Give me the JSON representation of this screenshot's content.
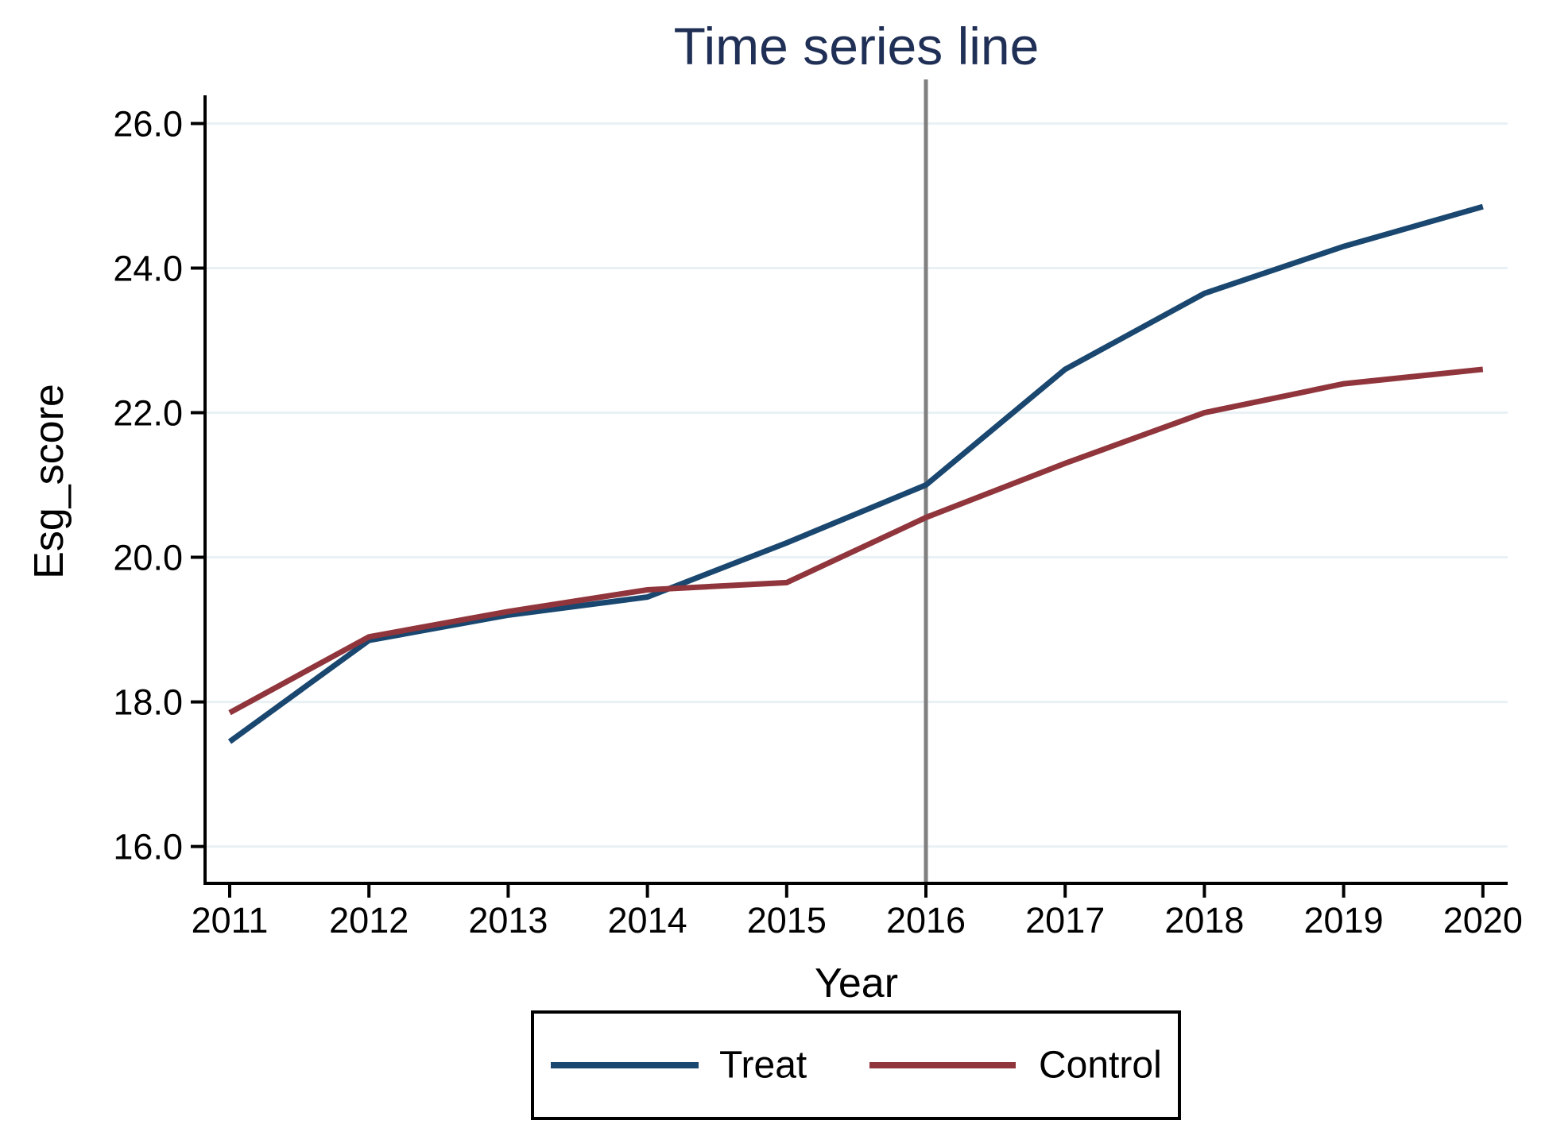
{
  "figure": {
    "background": "#ffffff"
  },
  "chart_data": {
    "type": "line",
    "title": "Time series line",
    "title_color": "#1f2f55",
    "xlabel": "Year",
    "ylabel": "Esg_score",
    "x": [
      2011,
      2012,
      2013,
      2014,
      2015,
      2016,
      2017,
      2018,
      2019,
      2020
    ],
    "x_tick_labels": [
      "2011",
      "2012",
      "2013",
      "2014",
      "2015",
      "2016",
      "2017",
      "2018",
      "2019",
      "2020"
    ],
    "y_ticks": [
      16,
      18,
      20,
      22,
      24,
      26
    ],
    "y_tick_labels": [
      "16.0",
      "18.0",
      "20.0",
      "22.0",
      "24.0",
      "26.0"
    ],
    "ylim": [
      15.49,
      26.39
    ],
    "grid": true,
    "gridline_color": "#e9f1f5",
    "axis_color": "#000000",
    "tick_label_color": "#000000",
    "series": [
      {
        "name": "Treat",
        "color": "#1a476f",
        "values": [
          17.45,
          18.85,
          19.2,
          19.45,
          20.2,
          21.0,
          22.6,
          23.65,
          24.3,
          24.85
        ]
      },
      {
        "name": "Control",
        "color": "#90353b",
        "values": [
          17.85,
          18.9,
          19.25,
          19.55,
          19.65,
          20.55,
          21.3,
          22.0,
          22.4,
          22.6
        ]
      }
    ],
    "vline": {
      "x": 2016,
      "color": "#808080"
    },
    "legend_position": "bottom"
  }
}
